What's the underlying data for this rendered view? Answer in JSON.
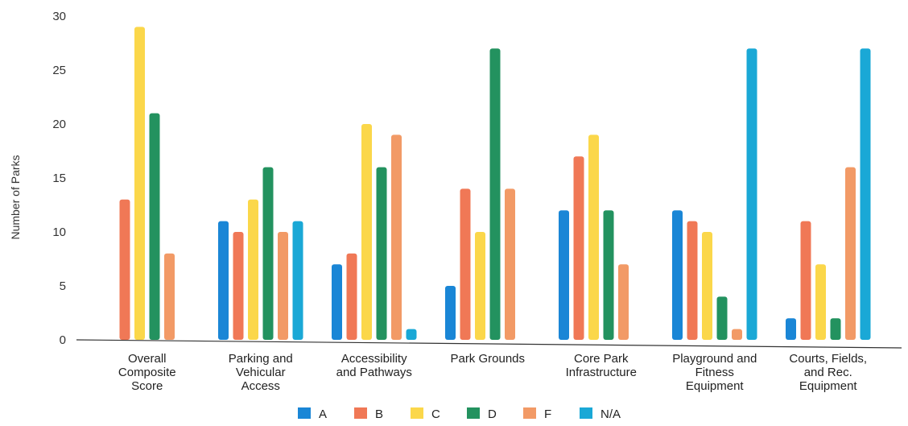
{
  "chart_data": {
    "type": "bar",
    "title": "",
    "xlabel": "",
    "ylabel": "Number of Parks",
    "ylim": [
      0,
      30
    ],
    "yticks": [
      0,
      5,
      10,
      15,
      20,
      25,
      30
    ],
    "grid": false,
    "legend_position": "bottom",
    "categories": [
      [
        "Overall",
        "Composite",
        "Score"
      ],
      [
        "Parking and",
        "Vehicular",
        "Access"
      ],
      [
        "Accessibility",
        "and Pathways"
      ],
      [
        "Park Grounds"
      ],
      [
        "Core Park",
        "Infrastructure"
      ],
      [
        "Playground and",
        "Fitness",
        "Equipment"
      ],
      [
        "Courts, Fields,",
        "and Rec.",
        "Equipment"
      ]
    ],
    "series": [
      {
        "name": "A",
        "color": "#1a86d6",
        "values": [
          0,
          11,
          7,
          5,
          12,
          12,
          2
        ]
      },
      {
        "name": "B",
        "color": "#f07856",
        "values": [
          13,
          10,
          8,
          14,
          17,
          11,
          11
        ]
      },
      {
        "name": "C",
        "color": "#fbd74a",
        "values": [
          29,
          13,
          20,
          10,
          19,
          10,
          7
        ]
      },
      {
        "name": "D",
        "color": "#23925f",
        "values": [
          21,
          16,
          16,
          27,
          12,
          4,
          2
        ]
      },
      {
        "name": "F",
        "color": "#f29a66",
        "values": [
          8,
          10,
          19,
          14,
          7,
          1,
          16
        ]
      },
      {
        "name": "N/A",
        "color": "#1aa8d6",
        "values": [
          0,
          11,
          1,
          0,
          0,
          27,
          27
        ]
      }
    ]
  }
}
